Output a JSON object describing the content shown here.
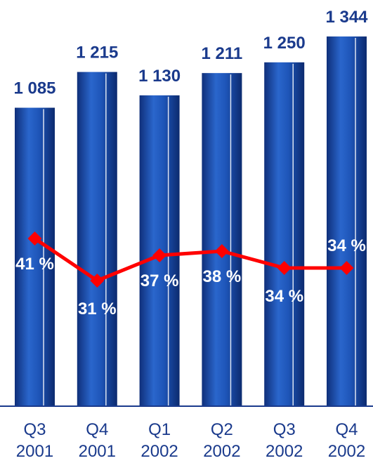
{
  "chart_data": {
    "type": "bar",
    "categories": [
      [
        "Q3",
        "2001"
      ],
      [
        "Q4",
        "2001"
      ],
      [
        "Q1",
        "2002"
      ],
      [
        "Q2",
        "2002"
      ],
      [
        "Q3",
        "2002"
      ],
      [
        "Q4",
        "2002"
      ]
    ],
    "bar_series": {
      "values": [
        1085,
        1215,
        1130,
        1211,
        1250,
        1344
      ],
      "labels": [
        "1 085",
        "1 215",
        "1 130",
        "1 211",
        "1 250",
        "1 344"
      ],
      "color": "#1a4fb0"
    },
    "line_series": {
      "values": [
        41,
        31,
        37,
        38,
        34,
        34
      ],
      "labels": [
        "41 %",
        "31 %",
        "37 %",
        "38 %",
        "34 %",
        "34 %"
      ],
      "color": "#ff0000",
      "ylim": [
        0,
        100
      ]
    },
    "ylim": [
      0,
      1344
    ],
    "grid": false,
    "legend": "none"
  }
}
